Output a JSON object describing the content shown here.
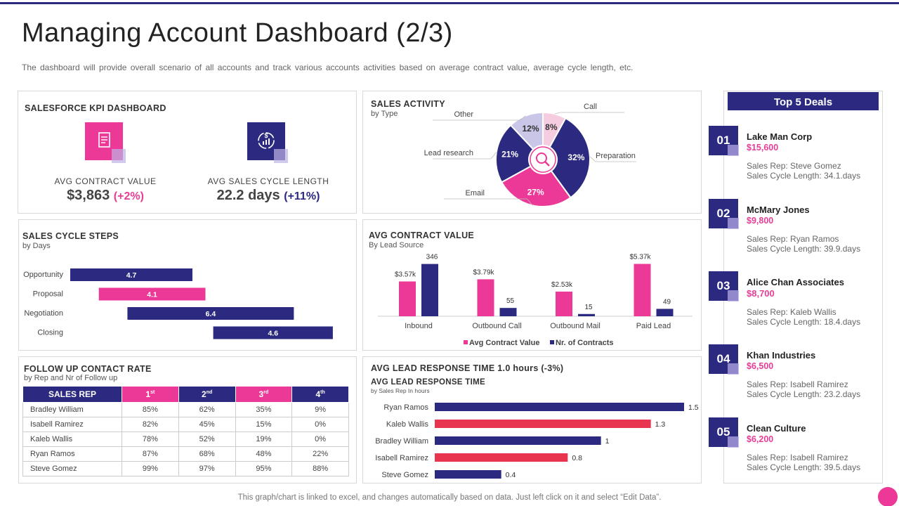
{
  "header": {
    "title": "Managing Account Dashboard (2/3)",
    "subtitle": "The dashboard will provide overall scenario of all accounts and track various accounts activities based on average contract value, average cycle length, etc."
  },
  "kpi": {
    "title": "SALESFORCE KPI DASHBOARD",
    "contract_label": "AVG CONTRACT VALUE",
    "contract_value": "$3,863",
    "contract_change": "(+2%)",
    "cycle_label": "AVG SALES CYCLE LENGTH",
    "cycle_value": "22.2 days",
    "cycle_change": "(+11%)"
  },
  "colors": {
    "navy": "#2b2a80",
    "pink": "#ec3896",
    "red": "#e8344e",
    "lavender": "#c9c6e8",
    "lightpink": "#f6cde0"
  },
  "footer": "This graph/chart is linked to excel, and changes automatically based on data. Just left click on it and select “Edit Data”.",
  "followup": {
    "title": "FOLLOW UP CONTACT RATE",
    "subtitle": "by Rep and Nr of Follow up",
    "headers": [
      "SALES REP",
      "1",
      "st",
      "2",
      "nd",
      "3",
      "rd",
      "4",
      "th"
    ],
    "rows": [
      [
        "Bradley William",
        "85%",
        "62%",
        "35%",
        "9%"
      ],
      [
        "Isabell Ramirez",
        "82%",
        "45%",
        "15%",
        "0%"
      ],
      [
        "Kaleb Wallis",
        "78%",
        "52%",
        "19%",
        "0%"
      ],
      [
        "Ryan Ramos",
        "87%",
        "68%",
        "48%",
        "22%"
      ],
      [
        "Steve Gomez",
        "99%",
        "97%",
        "95%",
        "88%"
      ]
    ]
  },
  "deals": {
    "title": "Top 5 Deals",
    "items": [
      {
        "num": "01",
        "name": "Lake Man Corp",
        "amount": "$15,600",
        "rep": "Sales Rep: Steve Gomez",
        "cycle": "Sales Cycle Length: 34.1.days"
      },
      {
        "num": "02",
        "name": "McMary Jones",
        "amount": "$9,800",
        "rep": "Sales Rep: Ryan Ramos",
        "cycle": "Sales Cycle Length: 39.9.days"
      },
      {
        "num": "03",
        "name": "Alice Chan Associates",
        "amount": "$8,700",
        "rep": "Sales Rep: Kaleb Wallis",
        "cycle": "Sales Cycle Length: 18.4.days"
      },
      {
        "num": "04",
        "name": "Khan Industries",
        "amount": "$6,500",
        "rep": "Sales Rep: Isabell Ramirez",
        "cycle": "Sales Cycle Length: 23.2.days"
      },
      {
        "num": "05",
        "name": "Clean Culture",
        "amount": "$6,200",
        "rep": "Sales Rep: Isabell Ramirez",
        "cycle": "Sales Cycle Length: 39.5.days"
      }
    ]
  },
  "chart_data": [
    {
      "id": "sales_activity",
      "type": "pie",
      "title": "SALES ACTIVITY",
      "subtitle": "by Type",
      "categories": [
        "Call",
        "Preparation",
        "Email",
        "Lead research",
        "Other"
      ],
      "values": [
        8,
        32,
        27,
        21,
        12
      ],
      "labels": [
        "8%",
        "32%",
        "27%",
        "21%",
        "12%"
      ]
    },
    {
      "id": "sales_cycle_steps",
      "type": "bar",
      "title": "SALES CYCLE STEPS",
      "subtitle": "by Days",
      "categories": [
        "Opportunity",
        "Proposal",
        "Negotiation",
        "Closing"
      ],
      "start": [
        0,
        1.1,
        2.2,
        5.5
      ],
      "values": [
        4.7,
        4.1,
        6.4,
        4.6
      ],
      "xlim": [
        0,
        10.4
      ]
    },
    {
      "id": "avg_contract_value",
      "type": "bar",
      "title": "AVG CONTRACT VALUE",
      "subtitle": "By Lead Source",
      "categories": [
        "Inbound",
        "Outbound Call",
        "Outbound Mail",
        "Paid Lead"
      ],
      "series": [
        {
          "name": "Avg Contract Value",
          "values": [
            3.57,
            3.79,
            2.53,
            5.37
          ],
          "labels": [
            "$3.57k",
            "$3.79k",
            "$2.53k",
            "$5.37k"
          ]
        },
        {
          "name": "Nr. of Contracts",
          "values": [
            346,
            55,
            15,
            49
          ],
          "labels": [
            "346",
            "55",
            "15",
            "49"
          ]
        }
      ]
    },
    {
      "id": "avg_lead_response",
      "type": "bar",
      "title": "AVG LEAD RESPONSE TIME 1.0 hours (-3%)",
      "subtitle_title": "AVG LEAD RESPONSE TIME",
      "subtitle": "by Sales Rep In hours",
      "categories": [
        "Ryan Ramos",
        "Kaleb Wallis",
        "Bradley William",
        "Isabell Ramirez",
        "Steve Gomez"
      ],
      "values": [
        1.5,
        1.3,
        1,
        0.8,
        0.4
      ],
      "labels": [
        "1.5",
        "1.3",
        "1",
        "0.8",
        "0.4"
      ],
      "xlim": [
        0,
        1.5
      ]
    }
  ]
}
